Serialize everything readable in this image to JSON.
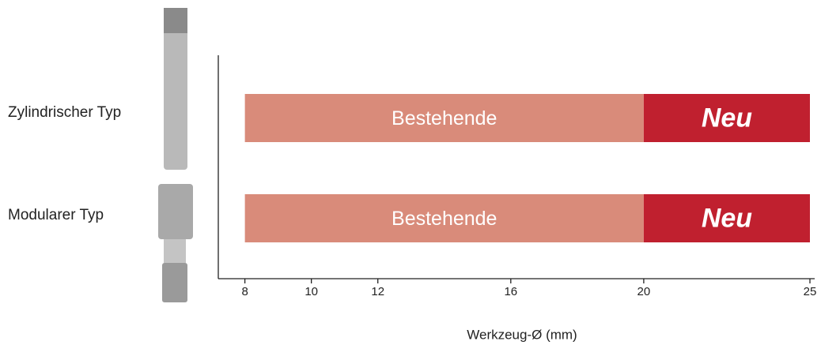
{
  "chart_data": {
    "type": "range-bar",
    "categories": [
      "Zylindrischer Typ",
      "Modularer Typ"
    ],
    "series": [
      {
        "name": "Bestehende",
        "color": "#d98b7a",
        "values": [
          [
            8,
            20
          ],
          [
            8,
            20
          ]
        ]
      },
      {
        "name": "Neu",
        "color": "#c0202f",
        "values": [
          [
            20,
            25
          ],
          [
            20,
            25
          ]
        ]
      }
    ],
    "x_label": "Werkzeug-Ø  (mm)",
    "xlim": [
      7.2,
      25
    ],
    "xticks": [
      8,
      10,
      12,
      16,
      20,
      25
    ]
  }
}
